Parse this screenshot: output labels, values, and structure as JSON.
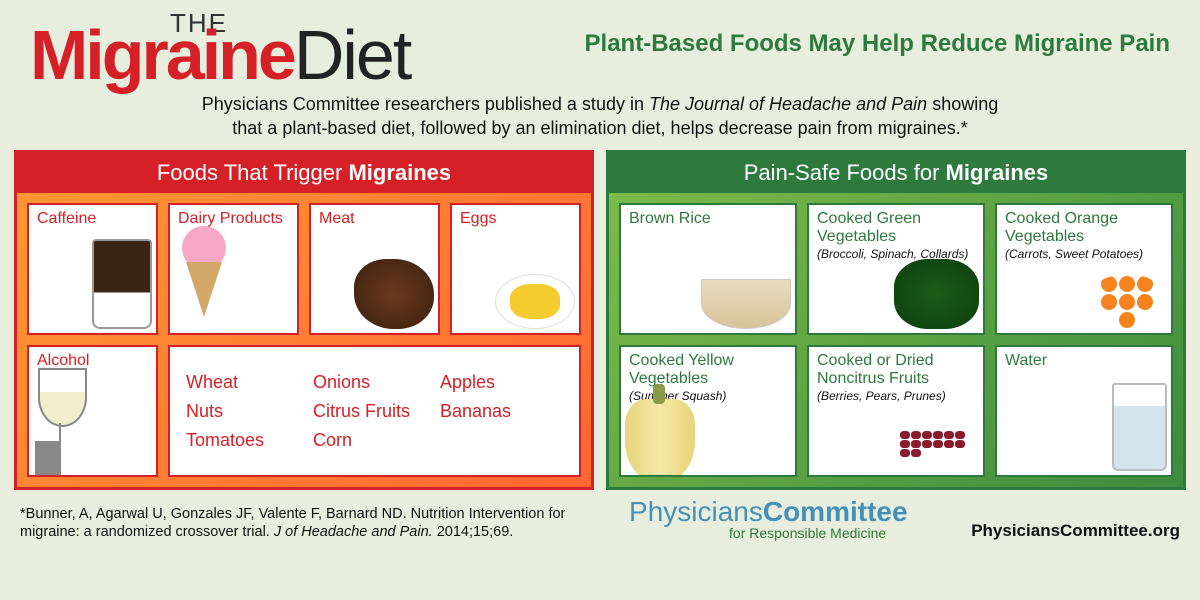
{
  "header": {
    "the": "THE",
    "migraine": "Migraine",
    "diet": "Diet",
    "subtitle": "Plant-Based Foods May Help Reduce Migraine Pain",
    "desc1": "Physicians Committee researchers published a study in ",
    "desc_em": "The Journal of Headache and Pain",
    "desc2": " showing",
    "desc3": "that a plant-based diet, followed by an elimination diet, helps decrease pain from migraines.*"
  },
  "red_panel": {
    "title_pre": "Foods That Trigger ",
    "title_bold": "Migraines",
    "cards": [
      {
        "label": "Caffeine"
      },
      {
        "label": "Dairy Products"
      },
      {
        "label": "Meat"
      },
      {
        "label": "Eggs"
      },
      {
        "label": "Alcohol"
      }
    ],
    "text_items": [
      "Wheat",
      "Onions",
      "Apples",
      "Nuts",
      "Citrus Fruits",
      "Bananas",
      "Tomatoes",
      "Corn",
      ""
    ]
  },
  "green_panel": {
    "title_pre": "Pain-Safe Foods for ",
    "title_bold": "Migraines",
    "cards": [
      {
        "label": "Brown Rice",
        "sub": ""
      },
      {
        "label": "Cooked Green Vegetables",
        "sub": "(Broccoli, Spinach, Collards)"
      },
      {
        "label": "Cooked Orange Vegetables",
        "sub": "(Carrots, Sweet Potatoes)"
      },
      {
        "label": "Cooked Yellow Vegetables",
        "sub": "(Summer Squash)"
      },
      {
        "label": "Cooked or Dried Noncitrus Fruits",
        "sub": "(Berries, Pears, Prunes)"
      },
      {
        "label": "Water",
        "sub": ""
      }
    ]
  },
  "footer": {
    "citation1": "*Bunner, A, Agarwal U, Gonzales JF, Valente F, Barnard ND. Nutrition Intervention for",
    "citation2_pre": "migraine: a randomized crossover trial. ",
    "citation2_em": "J of Headache and Pain.",
    "citation2_post": " 2014;15;69.",
    "logo_phys": "Physicians",
    "logo_comm": "Committee",
    "logo_sub": "for Responsible Medicine",
    "url": "PhysiciansCommittee.org"
  },
  "colors": {
    "bg": "#e8eedd",
    "red": "#d62027",
    "green": "#2e7a3e",
    "orange_grad_a": "#ff9933",
    "orange_grad_b": "#ff6633",
    "green_grad_a": "#7fbd4a",
    "green_grad_b": "#3d8b3d",
    "logo_blue": "#4590b8"
  }
}
